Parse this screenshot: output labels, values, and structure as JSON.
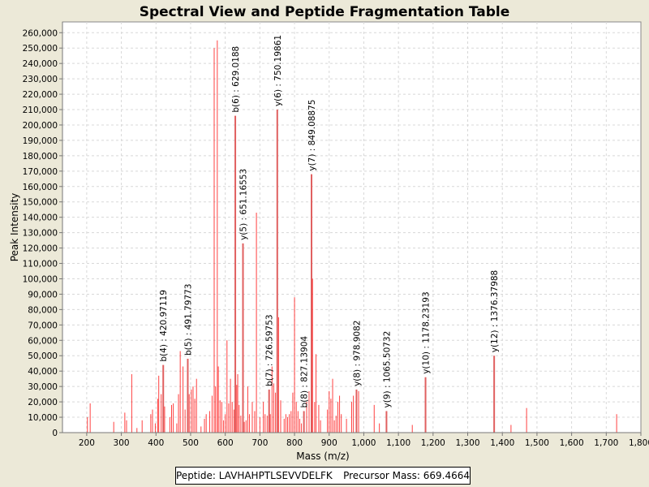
{
  "chart_data": {
    "type": "bar",
    "title": "Spectral View and Peptide Fragmentation Table",
    "xlabel": "Mass (m/z)",
    "ylabel": "Peak Intensity",
    "xlim": [
      130,
      1800
    ],
    "ylim": [
      0,
      267000
    ],
    "x_ticks": [
      200,
      300,
      400,
      500,
      600,
      700,
      800,
      900,
      1000,
      1100,
      1200,
      1300,
      1400,
      1500,
      1600,
      1700,
      1800
    ],
    "x_tick_labels": [
      "200",
      "300",
      "400",
      "500",
      "600",
      "700",
      "800",
      "900",
      "1,000",
      "1,100",
      "1,200",
      "1,300",
      "1,400",
      "1,500",
      "1,600",
      "1,700",
      "1,800"
    ],
    "y_ticks": [
      0,
      10000,
      20000,
      30000,
      40000,
      50000,
      60000,
      70000,
      80000,
      90000,
      100000,
      110000,
      120000,
      130000,
      140000,
      150000,
      160000,
      170000,
      180000,
      190000,
      200000,
      210000,
      220000,
      230000,
      240000,
      250000,
      260000
    ],
    "y_tick_labels": [
      "0",
      "10,000",
      "20,000",
      "30,000",
      "40,000",
      "50,000",
      "60,000",
      "70,000",
      "80,000",
      "90,000",
      "100,000",
      "110,000",
      "120,000",
      "130,000",
      "140,000",
      "150,000",
      "160,000",
      "170,000",
      "180,000",
      "190,000",
      "200,000",
      "210,000",
      "220,000",
      "230,000",
      "240,000",
      "250,000",
      "260,000"
    ],
    "grid": true,
    "peaks": [
      [
        202,
        10000
      ],
      [
        210,
        19000
      ],
      [
        278,
        7000
      ],
      [
        310,
        13000
      ],
      [
        315,
        8000
      ],
      [
        330,
        38000
      ],
      [
        345,
        3000
      ],
      [
        360,
        8000
      ],
      [
        385,
        12000
      ],
      [
        390,
        15000
      ],
      [
        398,
        6000
      ],
      [
        405,
        22000
      ],
      [
        408,
        37000
      ],
      [
        415,
        25000
      ],
      [
        420.97,
        44000
      ],
      [
        425,
        17000
      ],
      [
        440,
        10000
      ],
      [
        445,
        18000
      ],
      [
        450,
        19000
      ],
      [
        460,
        6000
      ],
      [
        465,
        25000
      ],
      [
        470,
        53000
      ],
      [
        478,
        43000
      ],
      [
        484,
        15000
      ],
      [
        491.8,
        48000
      ],
      [
        496,
        25000
      ],
      [
        502,
        28000
      ],
      [
        507,
        30000
      ],
      [
        512,
        22000
      ],
      [
        517,
        35000
      ],
      [
        530,
        4000
      ],
      [
        540,
        9000
      ],
      [
        545,
        12000
      ],
      [
        555,
        14000
      ],
      [
        562,
        24000
      ],
      [
        568,
        250000
      ],
      [
        572,
        30000
      ],
      [
        577,
        255000
      ],
      [
        580,
        43000
      ],
      [
        585,
        21000
      ],
      [
        590,
        20000
      ],
      [
        595,
        8000
      ],
      [
        600,
        12000
      ],
      [
        605,
        60000
      ],
      [
        610,
        19000
      ],
      [
        615,
        35000
      ],
      [
        620,
        20000
      ],
      [
        625,
        15000
      ],
      [
        629.02,
        206000
      ],
      [
        633,
        31000
      ],
      [
        636,
        38000
      ],
      [
        640,
        18000
      ],
      [
        645,
        11000
      ],
      [
        651.17,
        123000
      ],
      [
        655,
        7000
      ],
      [
        660,
        8000
      ],
      [
        665,
        30000
      ],
      [
        670,
        12000
      ],
      [
        678,
        20000
      ],
      [
        685,
        14000
      ],
      [
        690,
        143000
      ],
      [
        700,
        10000
      ],
      [
        710,
        20000
      ],
      [
        715,
        12000
      ],
      [
        721,
        11000
      ],
      [
        726.6,
        28000
      ],
      [
        730,
        12000
      ],
      [
        735,
        43000
      ],
      [
        740,
        32000
      ],
      [
        745,
        26000
      ],
      [
        750.2,
        210000
      ],
      [
        754,
        75000
      ],
      [
        760,
        21000
      ],
      [
        770,
        9000
      ],
      [
        775,
        12000
      ],
      [
        780,
        10000
      ],
      [
        785,
        12000
      ],
      [
        790,
        14000
      ],
      [
        795,
        26000
      ],
      [
        800,
        88000
      ],
      [
        805,
        20000
      ],
      [
        810,
        14000
      ],
      [
        815,
        9000
      ],
      [
        820,
        6000
      ],
      [
        827.14,
        14000
      ],
      [
        835,
        20000
      ],
      [
        842,
        27000
      ],
      [
        849.09,
        168000
      ],
      [
        852,
        100000
      ],
      [
        858,
        20000
      ],
      [
        862,
        51000
      ],
      [
        870,
        18000
      ],
      [
        875,
        8000
      ],
      [
        895,
        15000
      ],
      [
        900,
        27000
      ],
      [
        905,
        22000
      ],
      [
        910,
        35000
      ],
      [
        915,
        8000
      ],
      [
        920,
        11000
      ],
      [
        925,
        20000
      ],
      [
        930,
        24000
      ],
      [
        935,
        12000
      ],
      [
        950,
        9000
      ],
      [
        965,
        20000
      ],
      [
        970,
        24000
      ],
      [
        978.9,
        28000
      ],
      [
        985,
        27000
      ],
      [
        1030,
        18000
      ],
      [
        1045,
        6000
      ],
      [
        1065.5,
        14000
      ],
      [
        1140,
        5000
      ],
      [
        1178.23,
        36000
      ],
      [
        1376.38,
        50000
      ],
      [
        1425,
        5000
      ],
      [
        1470,
        16000
      ],
      [
        1730,
        12000
      ]
    ],
    "annotations": [
      {
        "mz": 420.97119,
        "intensity": 44000,
        "label": "b(4) : 420.97119"
      },
      {
        "mz": 491.79773,
        "intensity": 48000,
        "label": "b(5) : 491.79773"
      },
      {
        "mz": 629.0188,
        "intensity": 206000,
        "label": "b(6) : 629.0188"
      },
      {
        "mz": 651.16553,
        "intensity": 123000,
        "label": "y(5) : 651.16553"
      },
      {
        "mz": 726.59753,
        "intensity": 28000,
        "label": "b(7) : 726.59753"
      },
      {
        "mz": 750.19861,
        "intensity": 210000,
        "label": "y(6) : 750.19861"
      },
      {
        "mz": 827.13904,
        "intensity": 14000,
        "label": "b(8) : 827.13904"
      },
      {
        "mz": 849.08875,
        "intensity": 168000,
        "label": "y(7) : 849.08875"
      },
      {
        "mz": 978.9082,
        "intensity": 28000,
        "label": "y(8) : 978.9082"
      },
      {
        "mz": 1065.50732,
        "intensity": 14000,
        "label": "y(9) : 1065.50732"
      },
      {
        "mz": 1178.23193,
        "intensity": 36000,
        "label": "y(10) : 1178.23193"
      },
      {
        "mz": 1376.37988,
        "intensity": 50000,
        "label": "y(12) : 1376.37988"
      }
    ],
    "peak_color": "#FF0000",
    "highlight_color": "#E06060"
  },
  "info": {
    "peptide": "Peptide: LAVHAHPTLSEVVDELFK",
    "precursor": "Precursor Mass: 669.4664"
  }
}
